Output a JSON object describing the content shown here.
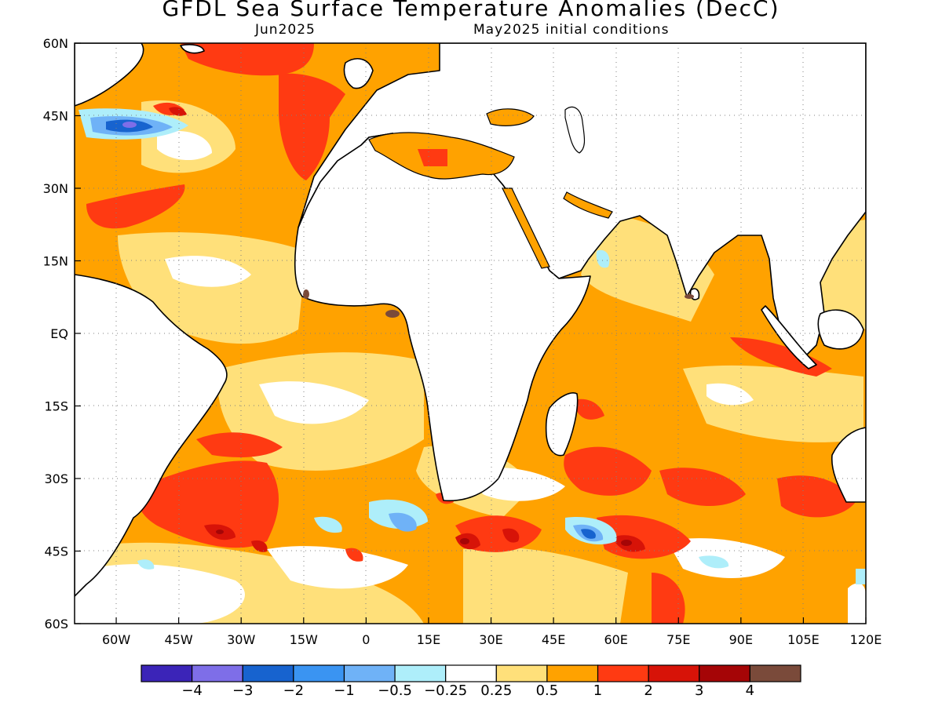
{
  "title": "GFDL Sea Surface Temperature Anomalies (DecC)",
  "subtitle_left": "Jun2025",
  "subtitle_right": "May2025 initial conditions",
  "map": {
    "projection": "lat-lon",
    "lon_range": [
      -70,
      120
    ],
    "lat_range": [
      -60,
      60
    ],
    "grid": "dotted",
    "land_color": "#ffffff",
    "x_ticks": [
      "60W",
      "45W",
      "30W",
      "15W",
      "0",
      "15E",
      "30E",
      "45E",
      "60E",
      "75E",
      "90E",
      "105E",
      "120E"
    ],
    "y_ticks": [
      "60N",
      "45N",
      "30N",
      "15N",
      "EQ",
      "15S",
      "30S",
      "45S",
      "60S"
    ]
  },
  "colorbar": {
    "colors": [
      "#3b24b8",
      "#7e6ee8",
      "#1763cf",
      "#3a94f2",
      "#6fb2f7",
      "#aeeefa",
      "#ffffff",
      "#ffe07a",
      "#ffa200",
      "#ff3a12",
      "#d71308",
      "#a50506",
      "#7a4a3a"
    ],
    "labels": [
      "−4",
      "−3",
      "−2",
      "−1",
      "−0.5",
      "−0.25",
      "0.25",
      "0.5",
      "1",
      "2",
      "3",
      "4"
    ]
  }
}
